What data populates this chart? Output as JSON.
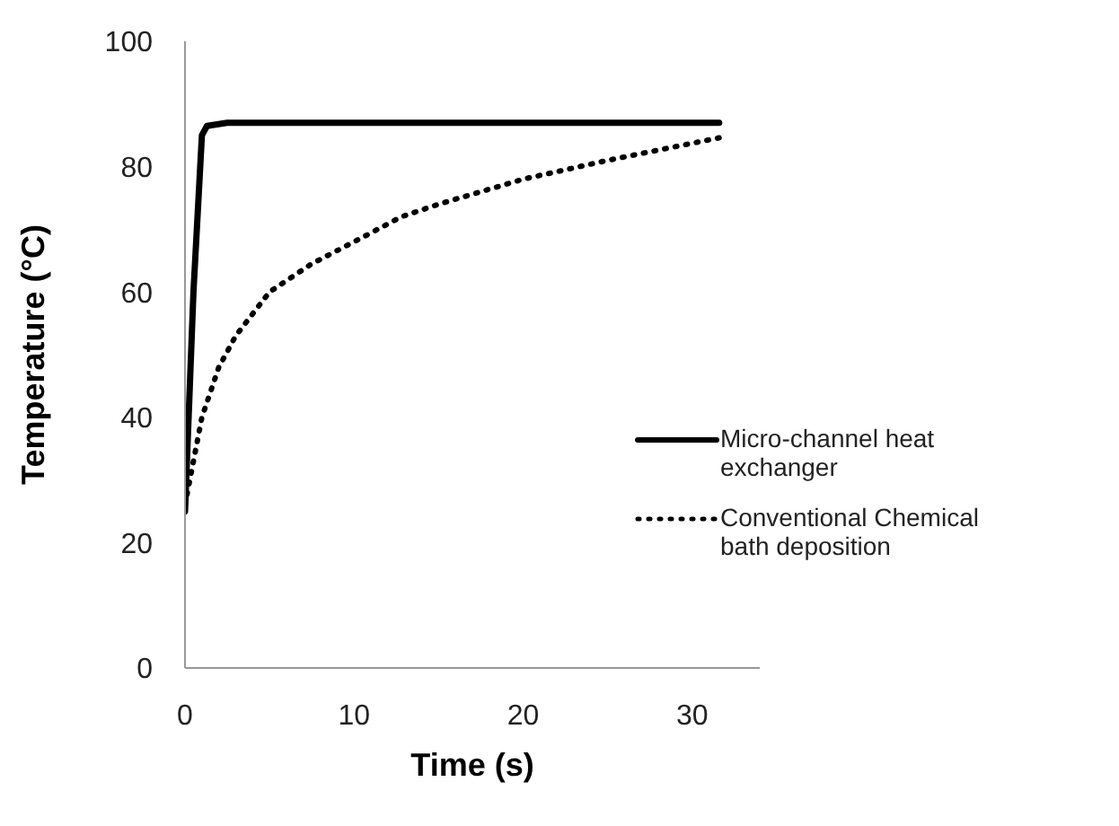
{
  "chart_data": {
    "type": "line",
    "xlabel": "Time (s)",
    "ylabel": "Temperature (°C)",
    "xlim": [
      0,
      34
    ],
    "xticks": [
      0,
      10,
      20,
      30
    ],
    "ylim": [
      0,
      100
    ],
    "yticks": [
      0,
      20,
      40,
      60,
      80,
      100
    ],
    "grid": false,
    "legend": "right",
    "marker": "none",
    "series": [
      {
        "name": "Micro-channel heat exchanger",
        "color": "#000000",
        "line_style": "solid",
        "x": [
          0,
          0.5,
          1,
          1.3,
          2.5,
          4,
          10,
          20,
          31.6
        ],
        "values": [
          25,
          60,
          85,
          86.5,
          87,
          87,
          87,
          87,
          87
        ]
      },
      {
        "name": "Conventional Chemical bath deposition",
        "color": "#000000",
        "line_style": "dotted",
        "x": [
          0,
          0.5,
          1,
          2,
          3,
          5,
          7.5,
          10,
          12.8,
          15,
          20,
          25,
          31.6
        ],
        "values": [
          26,
          33,
          40,
          48,
          53,
          60,
          64.5,
          68,
          72,
          74,
          78,
          81,
          84.6
        ]
      }
    ]
  }
}
